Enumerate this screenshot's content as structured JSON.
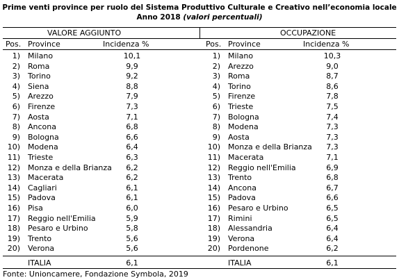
{
  "header": {
    "title": "Prime venti province per ruolo del Sistema Produttivo Culturale e Creativo nell’economia locale",
    "subtitle": "Anno 2018",
    "subtitle_emphasis": "(valori percentuali)"
  },
  "tables": [
    {
      "title": "VALORE AGGIUNTO",
      "columns": [
        "Pos.",
        "Province",
        "Incidenza %"
      ],
      "rows": [
        [
          "1)",
          "Milano",
          "10,1"
        ],
        [
          "2)",
          "Roma",
          "9,9"
        ],
        [
          "3)",
          "Torino",
          "9,2"
        ],
        [
          "4)",
          "Siena",
          "8,8"
        ],
        [
          "5)",
          "Arezzo",
          "7,9"
        ],
        [
          "6)",
          "Firenze",
          "7,3"
        ],
        [
          "7)",
          "Aosta",
          "7,1"
        ],
        [
          "8)",
          "Ancona",
          "6,8"
        ],
        [
          "9)",
          "Bologna",
          "6,6"
        ],
        [
          "10)",
          "Modena",
          "6,4"
        ],
        [
          "11)",
          "Trieste",
          "6,3"
        ],
        [
          "12)",
          "Monza e della Brianza",
          "6,2"
        ],
        [
          "13)",
          "Macerata",
          "6,2"
        ],
        [
          "14)",
          "Cagliari",
          "6,1"
        ],
        [
          "15)",
          "Padova",
          "6,1"
        ],
        [
          "16)",
          "Pisa",
          "6,0"
        ],
        [
          "17)",
          "Reggio nell'Emilia",
          "5,9"
        ],
        [
          "18)",
          "Pesaro e Urbino",
          "5,8"
        ],
        [
          "19)",
          "Trento",
          "5,6"
        ],
        [
          "20)",
          "Verona",
          "5,6"
        ]
      ],
      "total": [
        "ITALIA",
        "6,1"
      ]
    },
    {
      "title": "OCCUPAZIONE",
      "columns": [
        "Pos.",
        "Province",
        "Incidenza %"
      ],
      "rows": [
        [
          "1)",
          "Milano",
          "10,3"
        ],
        [
          "2)",
          "Arezzo",
          "9,0"
        ],
        [
          "3)",
          "Roma",
          "8,7"
        ],
        [
          "4)",
          "Torino",
          "8,6"
        ],
        [
          "5)",
          "Firenze",
          "7,8"
        ],
        [
          "6)",
          "Trieste",
          "7,5"
        ],
        [
          "7)",
          "Bologna",
          "7,4"
        ],
        [
          "8)",
          "Modena",
          "7,3"
        ],
        [
          "9)",
          "Aosta",
          "7,3"
        ],
        [
          "10)",
          "Monza e della Brianza",
          "7,3"
        ],
        [
          "11)",
          "Macerata",
          "7,1"
        ],
        [
          "12)",
          "Reggio nell'Emilia",
          "6,9"
        ],
        [
          "13)",
          "Trento",
          "6,8"
        ],
        [
          "14)",
          "Ancona",
          "6,7"
        ],
        [
          "15)",
          "Padova",
          "6,6"
        ],
        [
          "16)",
          "Pesaro e Urbino",
          "6,5"
        ],
        [
          "17)",
          "Rimini",
          "6,5"
        ],
        [
          "18)",
          "Alessandria",
          "6,4"
        ],
        [
          "19)",
          "Verona",
          "6,4"
        ],
        [
          "20)",
          "Pordenone",
          "6,2"
        ]
      ],
      "total": [
        "ITALIA",
        "6,1"
      ]
    }
  ],
  "source": "Fonte: Unioncamere, Fondazione Symbola, 2019"
}
